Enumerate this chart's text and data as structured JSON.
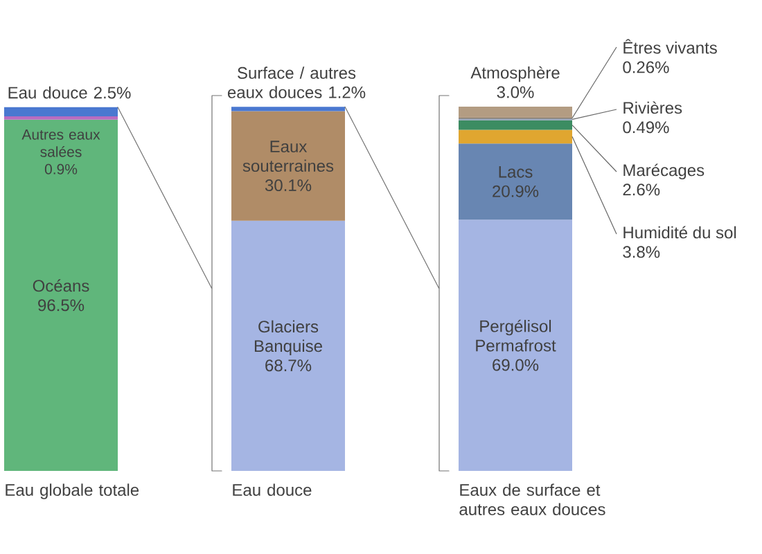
{
  "chart_data": {
    "type": "bar",
    "stacked": true,
    "tick_labels": "x",
    "categories": [
      "Eau globale totale",
      "Eau douce",
      "Eaux de surface et autres eaux douces"
    ],
    "series": [
      {
        "name": "Océans",
        "color": "#60b67b",
        "values": [
          96.5,
          null,
          null
        ],
        "value_labels": [
          "96.5%",
          null,
          null
        ]
      },
      {
        "name": "Autres eaux salées",
        "color": "#b86cc0",
        "values": [
          0.9,
          null,
          null
        ],
        "value_labels": [
          "0.9%",
          null,
          null
        ]
      },
      {
        "name": "Eau douce",
        "color": "#4a78d0",
        "values": [
          2.5,
          null,
          null
        ],
        "value_labels": [
          "2.5%",
          null,
          null
        ]
      },
      {
        "name": "Glaciers Banquise",
        "color": "#a5b5e3",
        "values": [
          null,
          68.7,
          null
        ],
        "value_labels": [
          null,
          "68.7%",
          null
        ]
      },
      {
        "name": "Eaux souterraines",
        "color": "#b08c67",
        "values": [
          null,
          30.1,
          null
        ],
        "value_labels": [
          null,
          "30.1%",
          null
        ]
      },
      {
        "name": "Surface / autres eaux douces",
        "color": "#4a78d0",
        "values": [
          null,
          1.2,
          null
        ],
        "value_labels": [
          null,
          "1.2%",
          null
        ]
      },
      {
        "name": "Pergélisol Permafrost",
        "color": "#a5b5e3",
        "values": [
          null,
          null,
          69.0
        ],
        "value_labels": [
          null,
          null,
          "69.0%"
        ]
      },
      {
        "name": "Lacs",
        "color": "#6886b2",
        "values": [
          null,
          null,
          20.9
        ],
        "value_labels": [
          null,
          null,
          "20.9%"
        ]
      },
      {
        "name": "Humidité du sol",
        "color": "#e0a630",
        "values": [
          null,
          null,
          3.8
        ],
        "value_labels": [
          null,
          null,
          "3.8%"
        ]
      },
      {
        "name": "Marécages",
        "color": "#3c8c62",
        "values": [
          null,
          null,
          2.6
        ],
        "value_labels": [
          null,
          null,
          "2.6%"
        ]
      },
      {
        "name": "Rivières",
        "color": "#8fa0b4",
        "values": [
          null,
          null,
          0.49
        ],
        "value_labels": [
          null,
          null,
          "0.49%"
        ]
      },
      {
        "name": "Êtres vivants",
        "color": "#7d6c5c",
        "values": [
          null,
          null,
          0.26
        ],
        "value_labels": [
          null,
          null,
          "0.26%"
        ]
      },
      {
        "name": "Atmosphère",
        "color": "#b39c82",
        "values": [
          null,
          null,
          3.0
        ],
        "value_labels": [
          null,
          null,
          "3.0%"
        ]
      }
    ]
  }
}
